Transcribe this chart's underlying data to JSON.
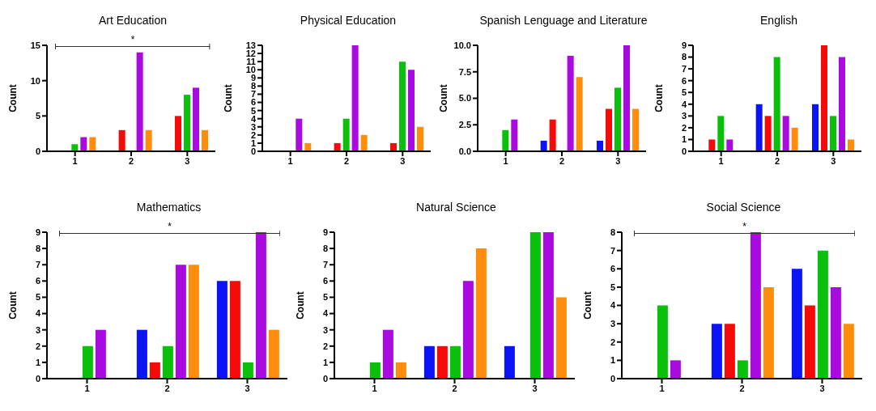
{
  "chart_data": [
    {
      "type": "bar",
      "title": "Art Education",
      "ylabel": "Count",
      "categories": [
        "1",
        "2",
        "3"
      ],
      "ylim": [
        0,
        15
      ],
      "yticks": [
        0,
        5,
        10,
        15
      ],
      "annotations": [
        "*"
      ],
      "series": [
        {
          "color": "#0a14f5",
          "values": [
            0,
            0,
            0
          ]
        },
        {
          "color": "#f50a0a",
          "values": [
            0,
            3,
            5
          ]
        },
        {
          "color": "#0ac00a",
          "values": [
            1,
            0,
            8
          ]
        },
        {
          "color": "#a80ae0",
          "values": [
            2,
            14,
            9
          ]
        },
        {
          "color": "#ff8c0a",
          "values": [
            2,
            3,
            3
          ]
        }
      ]
    },
    {
      "type": "bar",
      "title": "Physical Education",
      "ylabel": "Count",
      "categories": [
        "1",
        "2",
        "3"
      ],
      "ylim": [
        0,
        13
      ],
      "yticks": [
        0,
        1,
        2,
        3,
        4,
        5,
        6,
        7,
        8,
        9,
        10,
        11,
        12,
        13
      ],
      "series": [
        {
          "color": "#0a14f5",
          "values": [
            0,
            0,
            0
          ]
        },
        {
          "color": "#f50a0a",
          "values": [
            0,
            1,
            1
          ]
        },
        {
          "color": "#0ac00a",
          "values": [
            0,
            4,
            11
          ]
        },
        {
          "color": "#a80ae0",
          "values": [
            4,
            13,
            10
          ]
        },
        {
          "color": "#ff8c0a",
          "values": [
            1,
            2,
            3
          ]
        }
      ]
    },
    {
      "type": "bar",
      "title": "Spanish Lenguage and Literature",
      "ylabel": "Count",
      "categories": [
        "1",
        "2",
        "3"
      ],
      "ylim": [
        0,
        10
      ],
      "yticks": [
        {
          "value": 0,
          "label": "0.0"
        },
        2.5,
        {
          "value": 5,
          "label": "5.0"
        },
        7.5,
        {
          "value": 10,
          "label": "10.0"
        }
      ],
      "series": [
        {
          "color": "#0a14f5",
          "values": [
            0,
            1,
            1
          ]
        },
        {
          "color": "#f50a0a",
          "values": [
            0,
            3,
            4
          ]
        },
        {
          "color": "#0ac00a",
          "values": [
            2,
            0,
            6
          ]
        },
        {
          "color": "#a80ae0",
          "values": [
            3,
            9,
            10
          ]
        },
        {
          "color": "#ff8c0a",
          "values": [
            0,
            7,
            4
          ]
        }
      ]
    },
    {
      "type": "bar",
      "title": "English",
      "ylabel": "Count",
      "categories": [
        "1",
        "2",
        "3"
      ],
      "ylim": [
        0,
        9
      ],
      "yticks": [
        0,
        1,
        2,
        3,
        4,
        5,
        6,
        7,
        8,
        9
      ],
      "series": [
        {
          "color": "#0a14f5",
          "values": [
            0,
            4,
            4
          ]
        },
        {
          "color": "#f50a0a",
          "values": [
            1,
            3,
            9
          ]
        },
        {
          "color": "#0ac00a",
          "values": [
            3,
            8,
            3
          ]
        },
        {
          "color": "#a80ae0",
          "values": [
            1,
            3,
            8
          ]
        },
        {
          "color": "#ff8c0a",
          "values": [
            0,
            2,
            1
          ]
        }
      ]
    },
    {
      "type": "bar",
      "title": "Mathematics",
      "ylabel": "Count",
      "categories": [
        "1",
        "2",
        "3"
      ],
      "ylim": [
        0,
        9
      ],
      "yticks": [
        0,
        1,
        2,
        3,
        4,
        5,
        6,
        7,
        8,
        9
      ],
      "annotations": [
        "*"
      ],
      "series": [
        {
          "color": "#0a14f5",
          "values": [
            0,
            3,
            6
          ]
        },
        {
          "color": "#f50a0a",
          "values": [
            0,
            1,
            6
          ]
        },
        {
          "color": "#0ac00a",
          "values": [
            2,
            2,
            1
          ]
        },
        {
          "color": "#a80ae0",
          "values": [
            3,
            7,
            9
          ]
        },
        {
          "color": "#ff8c0a",
          "values": [
            0,
            7,
            3
          ]
        }
      ]
    },
    {
      "type": "bar",
      "title": "Natural Science",
      "ylabel": "Count",
      "categories": [
        "1",
        "2",
        "3"
      ],
      "ylim": [
        0,
        9
      ],
      "yticks": [
        0,
        1,
        2,
        3,
        4,
        5,
        6,
        7,
        8,
        9
      ],
      "series": [
        {
          "color": "#0a14f5",
          "values": [
            0,
            2,
            2
          ]
        },
        {
          "color": "#f50a0a",
          "values": [
            0,
            2,
            0
          ]
        },
        {
          "color": "#0ac00a",
          "values": [
            1,
            2,
            9
          ]
        },
        {
          "color": "#a80ae0",
          "values": [
            3,
            6,
            9
          ]
        },
        {
          "color": "#ff8c0a",
          "values": [
            1,
            8,
            5
          ]
        }
      ]
    },
    {
      "type": "bar",
      "title": "Social Science",
      "ylabel": "Count",
      "categories": [
        "1",
        "2",
        "3"
      ],
      "ylim": [
        0,
        8
      ],
      "yticks": [
        0,
        1,
        2,
        3,
        4,
        5,
        6,
        7,
        8
      ],
      "annotations": [
        "*"
      ],
      "series": [
        {
          "color": "#0a14f5",
          "values": [
            0,
            3,
            6
          ]
        },
        {
          "color": "#f50a0a",
          "values": [
            0,
            3,
            4
          ]
        },
        {
          "color": "#0ac00a",
          "values": [
            4,
            1,
            7
          ]
        },
        {
          "color": "#a80ae0",
          "values": [
            1,
            8,
            5
          ]
        },
        {
          "color": "#ff8c0a",
          "values": [
            0,
            5,
            3
          ]
        }
      ]
    }
  ]
}
